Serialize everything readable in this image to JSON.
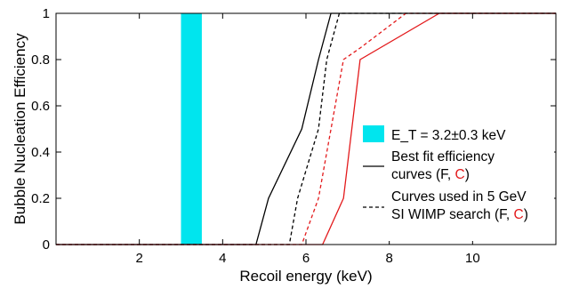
{
  "chart_data": {
    "type": "line",
    "xlabel": "Recoil energy (keV)",
    "ylabel": "Bubble Nucleation Efficiency",
    "xlim": [
      0,
      12
    ],
    "ylim": [
      0,
      1
    ],
    "x_ticks": [
      2,
      4,
      6,
      8,
      10
    ],
    "y_ticks": [
      0,
      0.2,
      0.4,
      0.6,
      0.8,
      1
    ],
    "x_tick_labels": [
      "2",
      "4",
      "6",
      "8",
      "10"
    ],
    "y_tick_labels": [
      "0",
      "0.2",
      "0.4",
      "0.6",
      "0.8",
      "1"
    ],
    "grid": false,
    "legend_position": "center-right",
    "threshold_band": {
      "label": "E_T = 3.2±0.3 keV",
      "x_range": [
        3.0,
        3.5
      ],
      "color": "#00e5ee"
    },
    "series": [
      {
        "group": "best-fit",
        "component": "F",
        "color": "#000000",
        "dash": "solid",
        "x": [
          0,
          4.8,
          5.1,
          5.9,
          6.3,
          6.6,
          12
        ],
        "y": [
          0,
          0,
          0.2,
          0.5,
          0.8,
          1,
          1
        ]
      },
      {
        "group": "best-fit",
        "component": "C",
        "color": "#e31a1c",
        "dash": "solid",
        "x": [
          0,
          6.4,
          6.9,
          7.3,
          9.2,
          12
        ],
        "y": [
          0,
          0,
          0.2,
          0.8,
          1,
          1
        ]
      },
      {
        "group": "wimp-search",
        "component": "F",
        "color": "#000000",
        "dash": "dashed",
        "x": [
          0,
          5.6,
          5.8,
          6.3,
          6.5,
          6.8,
          12
        ],
        "y": [
          0,
          0,
          0.2,
          0.5,
          0.8,
          1,
          1
        ]
      },
      {
        "group": "wimp-search",
        "component": "C",
        "color": "#e31a1c",
        "dash": "dashed",
        "x": [
          0,
          5.9,
          6.3,
          6.9,
          7.3,
          8.4,
          12
        ],
        "y": [
          0,
          0,
          0.2,
          0.8,
          0.85,
          1,
          1
        ]
      }
    ],
    "legend": {
      "band_label": "E_T = 3.2±0.3 keV",
      "best_fit_label_line1": "Best fit efficiency",
      "best_fit_label_line2_prefix": "curves (F, ",
      "best_fit_label_line2_red": "C",
      "best_fit_label_line2_suffix": ")",
      "wimp_label_line1": "Curves used in 5 GeV",
      "wimp_label_line2_prefix": "SI WIMP search (F, ",
      "wimp_label_line2_red": "C",
      "wimp_label_line2_suffix": ")"
    },
    "colors": {
      "band": "#00e5ee",
      "fluorine": "#000000",
      "carbon": "#e31a1c"
    }
  }
}
